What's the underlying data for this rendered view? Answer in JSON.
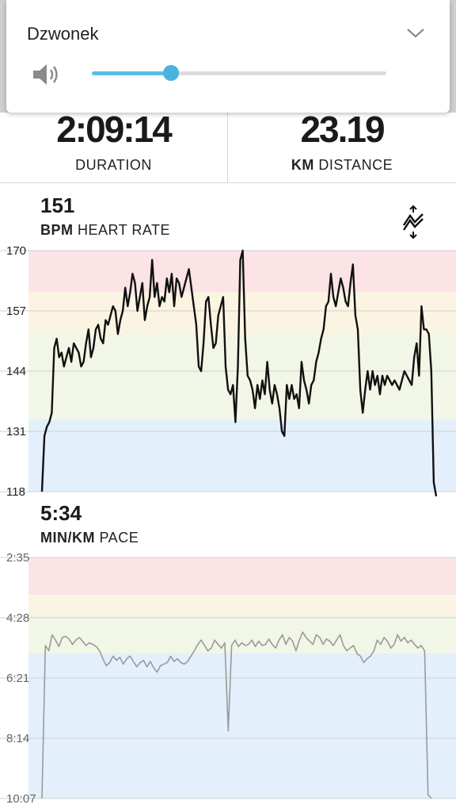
{
  "volume_panel": {
    "title": "Dzwonek",
    "level": 0.27,
    "accent": "#4ab3dd",
    "icons": {
      "speaker": "speaker-icon",
      "collapse": "chevron-down-icon"
    }
  },
  "stats": {
    "duration": {
      "value": "2:09:14",
      "label": "DURATION"
    },
    "distance": {
      "value": "23.19",
      "unit": "KM",
      "label": "DISTANCE"
    }
  },
  "heart_rate": {
    "value": "151",
    "unit": "BPM",
    "label": "HEART RATE",
    "toggle_icon": "chart-toggle-icon"
  },
  "pace": {
    "value": "5:34",
    "unit": "MIN/KM",
    "label": "PACE"
  },
  "chart_data": [
    {
      "type": "line",
      "ylim": [
        118,
        170
      ],
      "yticks": [
        "170",
        "157",
        "144",
        "131",
        "118"
      ],
      "zones": [
        {
          "from": 161,
          "to": 170,
          "color": "#fbe3e6"
        },
        {
          "from": 152,
          "to": 161,
          "color": "#fcf4e2"
        },
        {
          "from": 133.5,
          "to": 152,
          "color": "#f1f6e6"
        },
        {
          "from": 118,
          "to": 133.5,
          "color": "#e3effb"
        }
      ],
      "line_color": "#111111",
      "y": [
        118,
        130,
        132,
        133,
        135,
        149,
        151,
        147,
        148,
        145,
        147,
        149,
        146,
        150,
        149,
        148,
        145,
        146,
        150,
        153,
        147,
        149,
        153,
        154,
        151,
        150,
        155,
        154,
        156,
        158,
        157,
        152,
        155,
        157,
        162,
        158,
        161,
        165,
        163,
        157,
        160,
        163,
        155,
        158,
        160,
        168,
        160,
        163,
        158,
        160,
        159,
        164,
        161,
        165,
        158,
        164,
        163,
        160,
        162,
        164,
        166,
        162,
        158,
        154,
        145,
        144,
        150,
        159,
        160,
        154,
        149,
        150,
        156,
        158,
        160,
        145,
        140,
        139,
        141,
        133,
        145,
        168,
        170,
        151,
        143,
        142,
        140,
        136,
        141,
        138,
        142,
        139,
        146,
        140,
        137,
        141,
        139,
        136,
        131,
        130,
        141,
        138,
        141,
        138,
        139,
        136,
        146,
        142,
        140,
        137,
        141,
        142,
        146,
        148,
        151,
        153,
        158,
        159,
        165,
        160,
        158,
        161,
        164,
        162,
        159,
        158,
        163,
        167,
        156,
        153,
        140,
        135,
        140,
        144,
        140,
        144,
        141,
        143,
        139,
        143,
        141,
        143,
        142,
        141,
        142,
        141,
        140,
        142,
        144,
        143,
        142,
        141,
        147,
        150,
        143,
        158,
        153,
        153,
        152,
        144,
        120,
        117
      ]
    },
    {
      "type": "line",
      "yticks": [
        "2:35",
        "4:28",
        "6:21",
        "8:14",
        "10:07"
      ],
      "ylim": [
        155,
        607
      ],
      "zones": [
        {
          "from": 155,
          "to": 225,
          "color": "#fbe3e6"
        },
        {
          "from": 225,
          "to": 265,
          "color": "#fcf4e2"
        },
        {
          "from": 265,
          "to": 335,
          "color": "#f1f6e6"
        },
        {
          "from": 335,
          "to": 607,
          "color": "#e3effb"
        }
      ],
      "line_color": "#9a9a9a",
      "y": [
        607,
        320,
        330,
        300,
        310,
        322,
        305,
        303,
        308,
        318,
        310,
        305,
        312,
        320,
        315,
        318,
        322,
        330,
        345,
        358,
        352,
        340,
        348,
        342,
        355,
        345,
        340,
        350,
        360,
        352,
        348,
        360,
        350,
        362,
        370,
        358,
        355,
        352,
        340,
        350,
        345,
        352,
        355,
        350,
        340,
        330,
        318,
        310,
        320,
        330,
        325,
        310,
        318,
        325,
        315,
        480,
        320,
        310,
        322,
        315,
        320,
        318,
        310,
        322,
        312,
        320,
        318,
        308,
        318,
        325,
        310,
        300,
        318,
        305,
        312,
        330,
        310,
        295,
        305,
        312,
        318,
        300,
        305,
        318,
        308,
        312,
        320,
        310,
        300,
        320,
        330,
        325,
        320,
        335,
        340,
        352,
        345,
        340,
        330,
        310,
        318,
        305,
        312,
        325,
        318,
        300,
        312,
        305,
        315,
        310,
        318,
        325,
        320,
        330,
        600,
        607
      ]
    }
  ]
}
